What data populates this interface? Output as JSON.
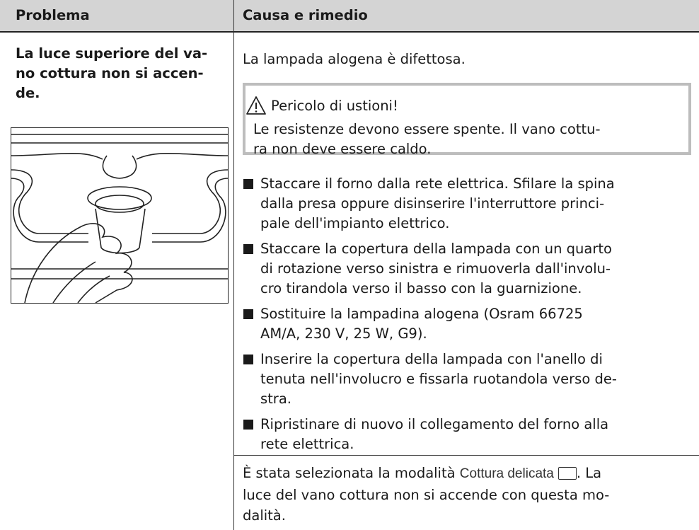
{
  "table": {
    "header": [
      "Problema",
      "Causa e rimedio"
    ],
    "problem": [
      "La luce superiore del va-",
      "no cottura non si accen-",
      "de."
    ],
    "causes": [
      {
        "lines": [
          "La lampada alogena è difettosa."
        ],
        "warning": {
          "title": "Pericolo di ustioni!",
          "lines": [
            "Le resistenze devono essere spente. Il vano cottu-",
            "ra non deve essere caldo."
          ]
        },
        "steps": [
          [
            "Staccare il forno dalla rete elettrica. Sfilare la spina",
            "dalla presa oppure disinserire l'interruttore princi-",
            "pale dell'impianto elettrico."
          ],
          [
            "Staccare la copertura della lampada con un quarto",
            "di rotazione verso sinistra e rimuoverla dall'involu-",
            "cro tirandola verso il basso con la guarnizione."
          ],
          [
            "Sostituire la lampadina alogena (Osram 66725",
            "AM/A, 230 V, 25 W, G9)."
          ],
          [
            "Inserire la copertura della lampada con l'anello di",
            "tenuta nell'involucro e fissarla ruotandola verso de-",
            "stra."
          ],
          [
            "Ripristinare di nuovo il collegamento del forno alla",
            "rete elettrica."
          ]
        ]
      },
      {
        "first_line": {
          "pre": "È stata selezionata la modalità ",
          "mode": "Cottura delicata",
          "post": ". La"
        },
        "lines": [
          "luce del vano cottura non si accende con questa mo-",
          "dalità."
        ]
      }
    ]
  }
}
